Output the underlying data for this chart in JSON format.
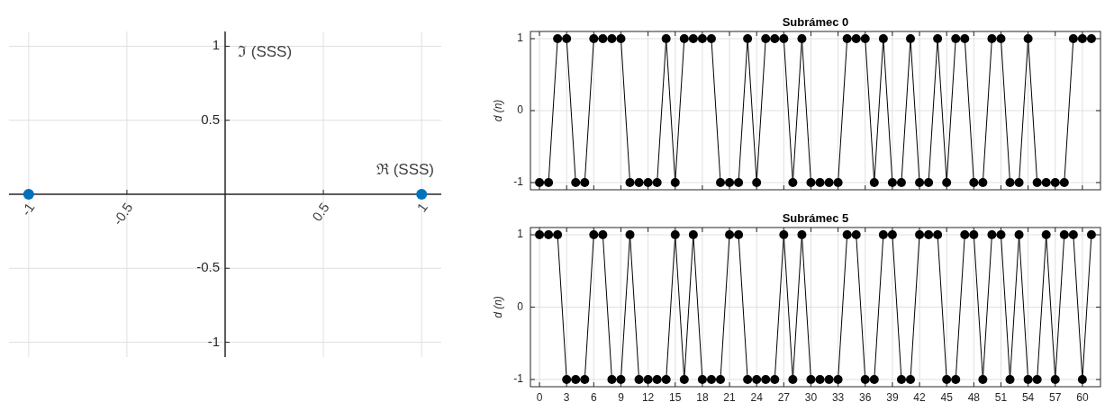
{
  "chart_data": [
    {
      "type": "scatter",
      "xlabel": "ℜ (SSS)",
      "ylabel": "ℑ (SSS)",
      "x": [
        -1,
        1
      ],
      "values": [
        0,
        0
      ],
      "color": "#0072bd",
      "marker": "circle",
      "xlim": [
        -1.1,
        1.1
      ],
      "ylim": [
        -1.1,
        1.1
      ],
      "xticks": [
        -1,
        -0.5,
        0.5,
        1
      ],
      "yticks": [
        -1,
        -0.5,
        0.5,
        1
      ],
      "grid": true
    },
    {
      "type": "line",
      "title": "Subrámec 0",
      "ylabel": "d (n)",
      "color": "#000000",
      "marker": "circle",
      "xlim": [
        -1,
        62
      ],
      "ylim": [
        -1.1,
        1.1
      ],
      "xticks": [
        0,
        3,
        6,
        9,
        12,
        15,
        18,
        21,
        24,
        27,
        30,
        33,
        36,
        39,
        42,
        45,
        48,
        51,
        54,
        57,
        60
      ],
      "yticks": [
        -1,
        0,
        1
      ],
      "grid": true,
      "tick_labels": "y",
      "x": [
        0,
        1,
        2,
        3,
        4,
        5,
        6,
        7,
        8,
        9,
        10,
        11,
        12,
        13,
        14,
        15,
        16,
        17,
        18,
        19,
        20,
        21,
        22,
        23,
        24,
        25,
        26,
        27,
        28,
        29,
        30,
        31,
        32,
        33,
        34,
        35,
        36,
        37,
        38,
        39,
        40,
        41,
        42,
        43,
        44,
        45,
        46,
        47,
        48,
        49,
        50,
        51,
        52,
        53,
        54,
        55,
        56,
        57,
        58,
        59,
        60,
        61
      ],
      "values": [
        -1,
        -1,
        1,
        1,
        -1,
        -1,
        1,
        1,
        1,
        1,
        -1,
        -1,
        -1,
        -1,
        1,
        -1,
        1,
        1,
        1,
        1,
        -1,
        -1,
        -1,
        1,
        -1,
        1,
        1,
        1,
        -1,
        1,
        -1,
        -1,
        -1,
        -1,
        1,
        1,
        1,
        -1,
        1,
        -1,
        -1,
        1,
        -1,
        -1,
        1,
        -1,
        1,
        1,
        -1,
        -1,
        1,
        1,
        -1,
        -1,
        1,
        -1,
        -1,
        -1,
        -1,
        1,
        1,
        1
      ]
    },
    {
      "type": "line",
      "title": "Subrámec 5",
      "ylabel": "d (n)",
      "color": "#000000",
      "marker": "circle",
      "xlim": [
        -1,
        62
      ],
      "ylim": [
        -1.1,
        1.1
      ],
      "xticks": [
        0,
        3,
        6,
        9,
        12,
        15,
        18,
        21,
        24,
        27,
        30,
        33,
        36,
        39,
        42,
        45,
        48,
        51,
        54,
        57,
        60
      ],
      "yticks": [
        -1,
        0,
        1
      ],
      "grid": true,
      "x": [
        0,
        1,
        2,
        3,
        4,
        5,
        6,
        7,
        8,
        9,
        10,
        11,
        12,
        13,
        14,
        15,
        16,
        17,
        18,
        19,
        20,
        21,
        22,
        23,
        24,
        25,
        26,
        27,
        28,
        29,
        30,
        31,
        32,
        33,
        34,
        35,
        36,
        37,
        38,
        39,
        40,
        41,
        42,
        43,
        44,
        45,
        46,
        47,
        48,
        49,
        50,
        51,
        52,
        53,
        54,
        55,
        56,
        57,
        58,
        59,
        60,
        61
      ],
      "values": [
        1,
        1,
        1,
        -1,
        -1,
        -1,
        1,
        1,
        -1,
        -1,
        1,
        -1,
        -1,
        -1,
        -1,
        1,
        -1,
        1,
        -1,
        -1,
        -1,
        1,
        1,
        -1,
        -1,
        -1,
        -1,
        1,
        -1,
        1,
        -1,
        -1,
        -1,
        -1,
        1,
        1,
        -1,
        -1,
        1,
        1,
        -1,
        -1,
        1,
        1,
        1,
        -1,
        -1,
        1,
        1,
        -1,
        1,
        1,
        -1,
        1,
        -1,
        -1,
        1,
        -1,
        1,
        1,
        -1,
        1
      ]
    }
  ]
}
